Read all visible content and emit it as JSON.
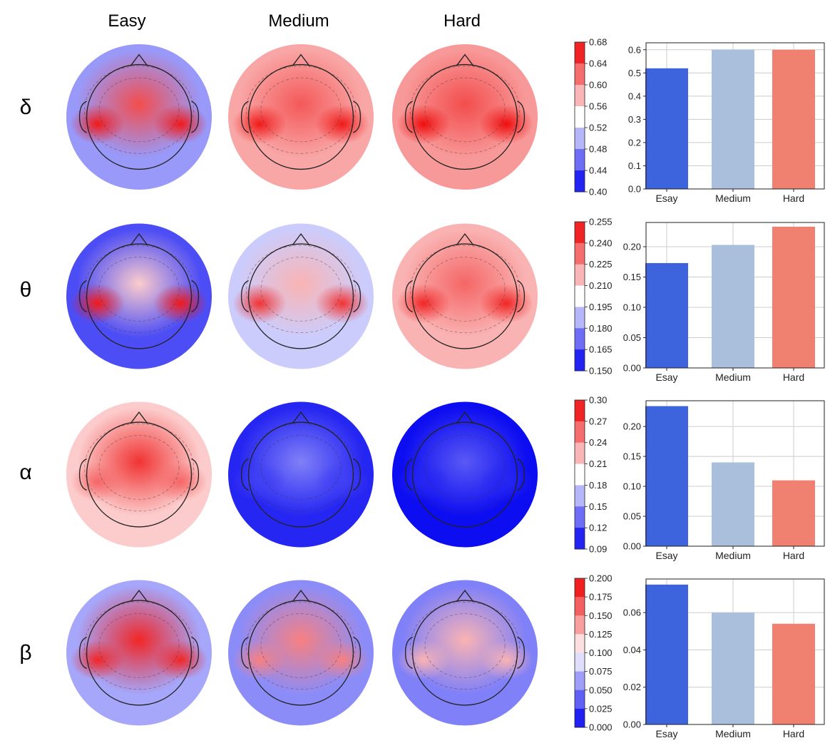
{
  "columns": [
    "Easy",
    "Medium",
    "Hard"
  ],
  "bands": [
    "δ",
    "θ",
    "α",
    "β"
  ],
  "colors": {
    "easy_bar": "#3d64dc",
    "medium_bar": "#aabfdc",
    "hard_bar": "#f08070",
    "cmap_low": "#0000f0",
    "cmap_mid": "#ffffff",
    "cmap_high": "#ee0000"
  },
  "topomap_intensity": [
    [
      [
        -0.4,
        0.7,
        0.9
      ],
      [
        0.35,
        0.65,
        0.9
      ],
      [
        0.4,
        0.7,
        0.95
      ]
    ],
    [
      [
        -0.7,
        0.2,
        0.9
      ],
      [
        -0.2,
        0.3,
        0.8
      ],
      [
        0.3,
        0.6,
        0.85
      ]
    ],
    [
      [
        0.2,
        0.8,
        0.6
      ],
      [
        -0.85,
        -0.5,
        -0.75
      ],
      [
        -0.95,
        -0.65,
        -0.85
      ]
    ],
    [
      [
        -0.35,
        0.85,
        0.85
      ],
      [
        -0.45,
        0.5,
        0.5
      ],
      [
        -0.5,
        0.3,
        0.3
      ]
    ]
  ],
  "colorbars": [
    {
      "ticks": [
        "0.68",
        "0.64",
        "0.60",
        "0.56",
        "0.52",
        "0.48",
        "0.44",
        "0.40"
      ]
    },
    {
      "ticks": [
        "0.255",
        "0.240",
        "0.225",
        "0.210",
        "0.195",
        "0.180",
        "0.165",
        "0.150"
      ]
    },
    {
      "ticks": [
        "0.30",
        "0.27",
        "0.24",
        "0.21",
        "0.18",
        "0.15",
        "0.12",
        "0.09"
      ]
    },
    {
      "ticks": [
        "0.200",
        "0.175",
        "0.150",
        "0.125",
        "0.100",
        "0.075",
        "0.050",
        "0.025",
        "0.000"
      ]
    }
  ],
  "chart_data": [
    {
      "type": "bar",
      "categories": [
        "Esay",
        "Medium",
        "Hard"
      ],
      "values": [
        0.52,
        0.6,
        0.6
      ],
      "ylim": [
        0,
        0.63
      ],
      "yticks": [
        "0.0",
        "0.1",
        "0.2",
        "0.3",
        "0.4",
        "0.5",
        "0.6"
      ],
      "ytick_values": [
        0,
        0.1,
        0.2,
        0.3,
        0.4,
        0.5,
        0.6
      ],
      "grid": true
    },
    {
      "type": "bar",
      "categories": [
        "Esay",
        "Medium",
        "Hard"
      ],
      "values": [
        0.173,
        0.203,
        0.233
      ],
      "ylim": [
        0,
        0.24
      ],
      "yticks": [
        "0.00",
        "0.05",
        "0.10",
        "0.15",
        "0.20"
      ],
      "ytick_values": [
        0,
        0.05,
        0.1,
        0.15,
        0.2
      ],
      "grid": true
    },
    {
      "type": "bar",
      "categories": [
        "Esay",
        "Medium",
        "Hard"
      ],
      "values": [
        0.234,
        0.14,
        0.11
      ],
      "ylim": [
        0,
        0.243
      ],
      "yticks": [
        "0.00",
        "0.05",
        "0.10",
        "0.15",
        "0.20"
      ],
      "ytick_values": [
        0,
        0.05,
        0.1,
        0.15,
        0.2
      ],
      "grid": true
    },
    {
      "type": "bar",
      "categories": [
        "Esay",
        "Medium",
        "Hard"
      ],
      "values": [
        0.075,
        0.06,
        0.054
      ],
      "ylim": [
        0,
        0.078
      ],
      "yticks": [
        "0.00",
        "0.02",
        "0.04",
        "0.06"
      ],
      "ytick_values": [
        0,
        0.02,
        0.04,
        0.06
      ],
      "grid": true
    }
  ]
}
